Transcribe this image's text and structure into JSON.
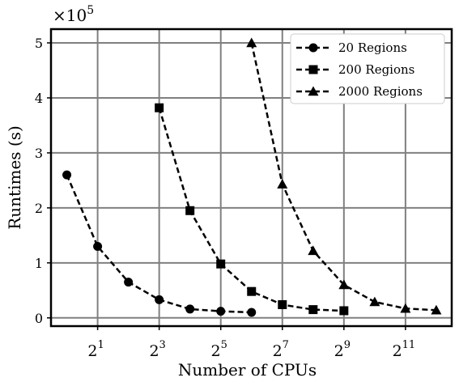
{
  "chart_data": {
    "type": "line",
    "xlabel": "Number of CPUs",
    "ylabel": "Runtimes (s)",
    "x_scale": "log2",
    "x_ticks": [
      {
        "base": "2",
        "exp": "1",
        "value": 2
      },
      {
        "base": "2",
        "exp": "3",
        "value": 8
      },
      {
        "base": "2",
        "exp": "5",
        "value": 32
      },
      {
        "base": "2",
        "exp": "7",
        "value": 128
      },
      {
        "base": "2",
        "exp": "9",
        "value": 512
      },
      {
        "base": "2",
        "exp": "11",
        "value": 2048
      }
    ],
    "xlim": [
      0.7,
      5800
    ],
    "y_ticks": [
      {
        "label": "0",
        "value": 0
      },
      {
        "label": "1",
        "value": 100000
      },
      {
        "label": "2",
        "value": 200000
      },
      {
        "label": "3",
        "value": 300000
      },
      {
        "label": "4",
        "value": 400000
      },
      {
        "label": "5",
        "value": 500000
      }
    ],
    "ylim": [
      -15000,
      525000
    ],
    "y_multiplier": {
      "base": "×10",
      "exp": "5"
    },
    "grid": true,
    "legend_position": "top-right",
    "series": [
      {
        "name": "20 Regions",
        "marker": "circle",
        "x": [
          1,
          2,
          4,
          8,
          16,
          32,
          64
        ],
        "y": [
          260000,
          130000,
          65000,
          33000,
          16000,
          12000,
          10000
        ]
      },
      {
        "name": "200 Regions",
        "marker": "square",
        "x": [
          8,
          16,
          32,
          64,
          128,
          256,
          512
        ],
        "y": [
          382000,
          195000,
          98000,
          48000,
          24000,
          15000,
          13000
        ]
      },
      {
        "name": "2000 Regions",
        "marker": "triangle",
        "x": [
          64,
          128,
          256,
          512,
          1024,
          2048,
          4096
        ],
        "y": [
          500000,
          243000,
          122000,
          60000,
          29000,
          17000,
          14000
        ]
      }
    ]
  }
}
